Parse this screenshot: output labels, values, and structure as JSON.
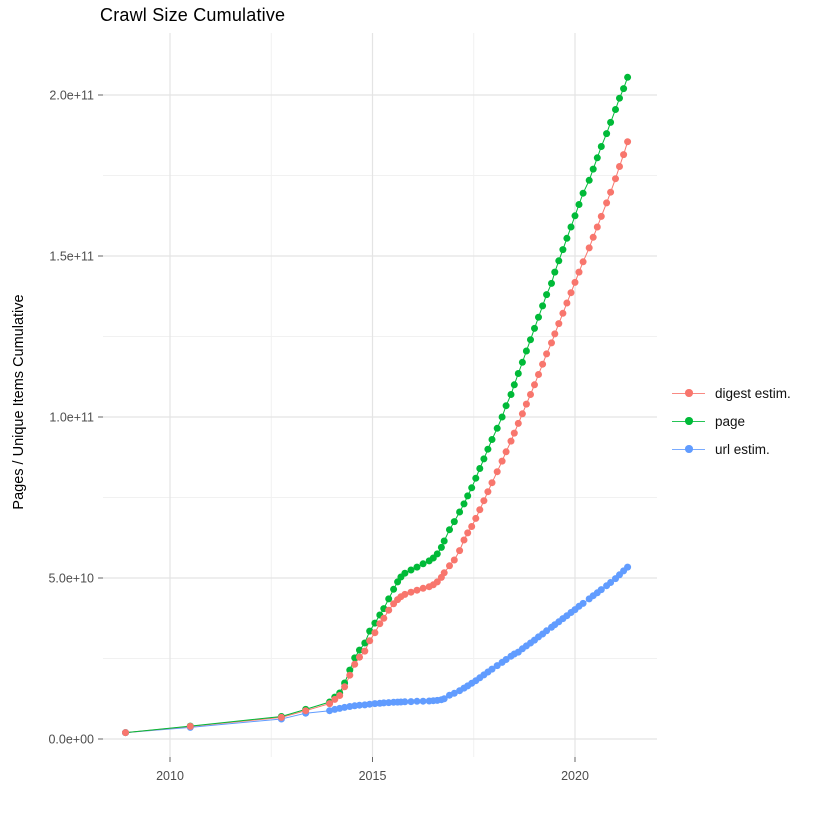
{
  "chart_data": {
    "type": "line",
    "title": "Crawl Size Cumulative",
    "ylabel": "Pages / Unique Items Cumulative",
    "xlabel": "",
    "value_unit": "pages; series values stored in billions (1e9)",
    "grid": true,
    "points": true,
    "legend_position": "right",
    "x_range_years": [
      2008.35,
      2022.0
    ],
    "ylim_billions": [
      0,
      220
    ],
    "x_ticks": [
      {
        "label": "2010",
        "year": 2010
      },
      {
        "label": "2015",
        "year": 2015
      },
      {
        "label": "2020",
        "year": 2020
      }
    ],
    "x_minor_ticks_years": [
      2012.5,
      2017.5
    ],
    "y_ticks": [
      {
        "label": "0.0e+00",
        "value": 0
      },
      {
        "label": "5.0e+10",
        "value": 50
      },
      {
        "label": "1.0e+11",
        "value": 100
      },
      {
        "label": "1.5e+11",
        "value": 150
      },
      {
        "label": "2.0e+11",
        "value": 200
      }
    ],
    "y_minor_ticks": [
      25,
      75,
      125,
      175
    ],
    "x": [
      2008.9,
      2010.5,
      2012.75,
      2013.35,
      2013.94,
      2014.07,
      2014.19,
      2014.31,
      2014.44,
      2014.56,
      2014.68,
      2014.81,
      2014.93,
      2015.06,
      2015.18,
      2015.28,
      2015.4,
      2015.52,
      2015.62,
      2015.7,
      2015.8,
      2015.95,
      2016.1,
      2016.25,
      2016.4,
      2016.5,
      2016.6,
      2016.7,
      2016.77,
      2016.9,
      2017.02,
      2017.15,
      2017.26,
      2017.35,
      2017.45,
      2017.55,
      2017.65,
      2017.75,
      2017.85,
      2017.95,
      2018.08,
      2018.2,
      2018.3,
      2018.42,
      2018.5,
      2018.6,
      2018.7,
      2018.8,
      2018.9,
      2019.0,
      2019.1,
      2019.2,
      2019.3,
      2019.42,
      2019.5,
      2019.6,
      2019.7,
      2019.8,
      2019.9,
      2020.0,
      2020.1,
      2020.2,
      2020.35,
      2020.45,
      2020.55,
      2020.65,
      2020.78,
      2020.88,
      2021.0,
      2021.1,
      2021.2,
      2021.3
    ],
    "series": [
      {
        "name": "digest estim.",
        "color": "#F8766D",
        "values": [
          2,
          3.9,
          6.7,
          8.8,
          11,
          12.3,
          13.5,
          16.2,
          19.8,
          23.2,
          25.4,
          27.3,
          30.5,
          33,
          35.8,
          37.5,
          40,
          42,
          43.3,
          44.2,
          44.9,
          45.6,
          46.2,
          46.8,
          47.3,
          47.9,
          48.8,
          50.2,
          51.6,
          53.8,
          55.6,
          58.5,
          61.8,
          64,
          66,
          68.5,
          71.2,
          74,
          76.8,
          79.6,
          83,
          86.3,
          89.2,
          92.5,
          95,
          98,
          101,
          104,
          107,
          110,
          113.2,
          116.4,
          119.6,
          123,
          125.8,
          129,
          132.2,
          135.4,
          138.6,
          141.8,
          145,
          148.2,
          152.5,
          155.8,
          159,
          162.3,
          166.5,
          169.8,
          174,
          177.8,
          181.5,
          185.5
        ]
      },
      {
        "name": "page",
        "color": "#00BA38",
        "values": [
          2,
          4,
          7,
          9.2,
          11.5,
          13,
          14.3,
          17.4,
          21.4,
          25.2,
          27.6,
          29.8,
          33.5,
          36,
          38.5,
          40.5,
          43.5,
          46.5,
          48.8,
          50.3,
          51.5,
          52.5,
          53.4,
          54.4,
          55.3,
          56.2,
          57.5,
          59.5,
          61.5,
          65,
          67.5,
          70.5,
          73,
          75.5,
          78,
          81,
          84,
          87,
          90,
          93,
          96.5,
          100,
          103.5,
          107,
          110,
          113.5,
          117,
          120.5,
          124,
          127.5,
          131,
          134.5,
          138,
          141.5,
          145,
          148.5,
          152,
          155.5,
          159,
          162.5,
          166,
          169.5,
          173.5,
          177,
          180.5,
          184,
          188,
          191.5,
          195.5,
          199,
          202,
          205.5
        ]
      },
      {
        "name": "url estim.",
        "color": "#619CFF",
        "values": [
          2,
          3.6,
          6.2,
          8,
          8.8,
          9.2,
          9.5,
          9.8,
          10.1,
          10.3,
          10.5,
          10.6,
          10.8,
          11,
          11.1,
          11.2,
          11.3,
          11.4,
          11.45,
          11.5,
          11.55,
          11.6,
          11.7,
          11.75,
          11.8,
          11.9,
          12,
          12.2,
          12.5,
          13.6,
          14.2,
          15,
          15.8,
          16.5,
          17.3,
          18.1,
          19,
          19.9,
          20.8,
          21.7,
          22.8,
          23.8,
          24.7,
          25.7,
          26.4,
          27,
          28,
          28.9,
          29.8,
          30.7,
          31.7,
          32.6,
          33.6,
          34.7,
          35.5,
          36.4,
          37.4,
          38.3,
          39.3,
          40.2,
          41.2,
          42.1,
          43.5,
          44.5,
          45.4,
          46.4,
          47.6,
          48.6,
          49.8,
          51,
          52.2,
          53.4
        ]
      }
    ],
    "style": {
      "grid_major_color": "#e4e4e4",
      "grid_minor_color": "#f1f1f1",
      "tick_color": "#666666",
      "tick_label_color": "#4d4d4d",
      "background": "#ffffff"
    }
  }
}
